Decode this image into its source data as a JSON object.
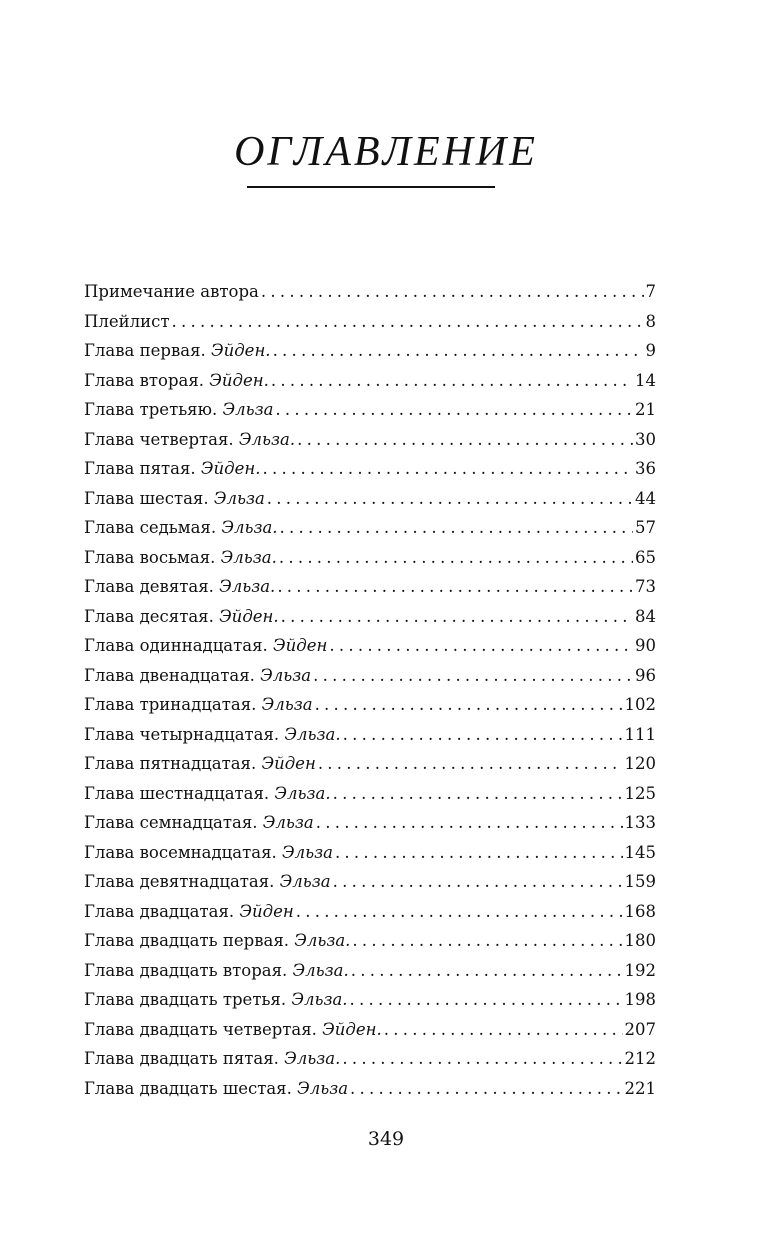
{
  "title": "ОГЛАВЛЕНИЕ",
  "entries": [
    {
      "text": "Примечание автора",
      "name": "",
      "page": "7"
    },
    {
      "text": "Плейлист",
      "name": "",
      "page": "8"
    },
    {
      "text": "Глава первая. ",
      "name": "Эйден.",
      "page": "9"
    },
    {
      "text": "Глава вторая. ",
      "name": "Эйден.",
      "page": "14"
    },
    {
      "text": "Глава третьяю. ",
      "name": "Эльза",
      "page": "21"
    },
    {
      "text": "Глава четвертая. ",
      "name": "Эльза.",
      "page": "30"
    },
    {
      "text": "Глава пятая. ",
      "name": "Эйден.",
      "page": "36"
    },
    {
      "text": "Глава шестая. ",
      "name": "Эльза",
      "page": "44"
    },
    {
      "text": "Глава седьмая. ",
      "name": "Эльза.",
      "page": "57"
    },
    {
      "text": "Глава восьмая. ",
      "name": "Эльза.",
      "page": "65"
    },
    {
      "text": "Глава девятая. ",
      "name": "Эльза.",
      "page": "73"
    },
    {
      "text": "Глава десятая. ",
      "name": "Эйден.",
      "page": "84"
    },
    {
      "text": "Глава одиннадцатая. ",
      "name": "Эйден",
      "page": "90"
    },
    {
      "text": "Глава двенадцатая. ",
      "name": "Эльза",
      "page": "96"
    },
    {
      "text": "Глава тринадцатая. ",
      "name": "Эльза",
      "page": "102"
    },
    {
      "text": "Глава четырнадцатая. ",
      "name": "Эльза.",
      "page": "111"
    },
    {
      "text": "Глава пятнадцатая. ",
      "name": "Эйден",
      "page": "120"
    },
    {
      "text": "Глава шестнадцатая. ",
      "name": "Эльза.",
      "page": "125"
    },
    {
      "text": "Глава семнадцатая. ",
      "name": "Эльза",
      "page": "133"
    },
    {
      "text": "Глава восемнадцатая. ",
      "name": "Эльза",
      "page": "145"
    },
    {
      "text": "Глава девятнадцатая. ",
      "name": "Эльза",
      "page": "159"
    },
    {
      "text": "Глава двадцатая. ",
      "name": "Эйден",
      "page": "168"
    },
    {
      "text": "Глава двадцать первая. ",
      "name": "Эльза.",
      "page": "180"
    },
    {
      "text": "Глава двадцать вторая. ",
      "name": "Эльза.",
      "page": "192"
    },
    {
      "text": "Глава двадцать третья. ",
      "name": "Эльза.",
      "page": "198"
    },
    {
      "text": "Глава двадцать четвертая. ",
      "name": "Эйден.",
      "page": "207"
    },
    {
      "text": "Глава двадцать пятая. ",
      "name": "Эльза.",
      "page": "212"
    },
    {
      "text": "Глава двадцать шестая. ",
      "name": "Эльза",
      "page": "221"
    }
  ],
  "folio": "349"
}
